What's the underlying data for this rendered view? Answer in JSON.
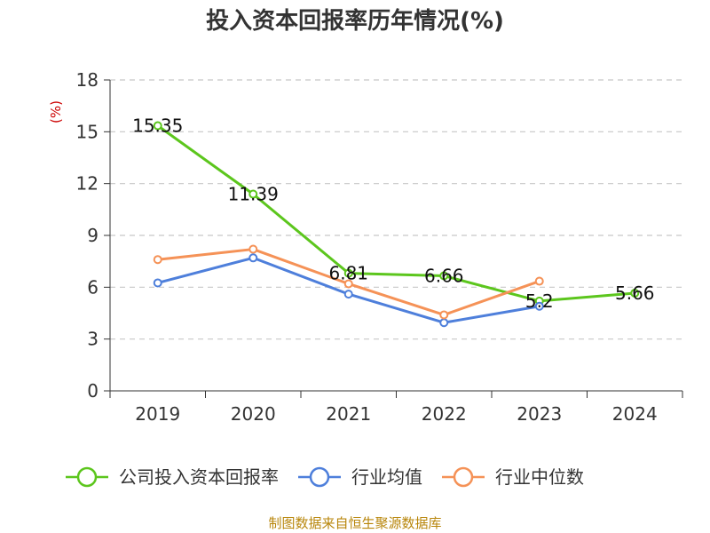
{
  "chart_data": {
    "type": "line",
    "title": "投入资本回报率历年情况(%)",
    "ylabel": "(%)",
    "categories": [
      "2019",
      "2020",
      "2021",
      "2022",
      "2023",
      "2024"
    ],
    "ylim": [
      0,
      18
    ],
    "yticks": [
      0,
      3,
      6,
      9,
      12,
      15,
      18
    ],
    "grid": true,
    "legend_position": "bottom",
    "series": [
      {
        "name": "公司投入资本回报率",
        "values": [
          15.35,
          11.39,
          6.81,
          6.66,
          5.2,
          5.66
        ],
        "labels": [
          "15.35",
          "11.39",
          "6.81",
          "6.66",
          "5.2",
          "5.66"
        ],
        "color": "#5cc61d"
      },
      {
        "name": "行业均值",
        "values": [
          6.25,
          7.7,
          5.6,
          3.95,
          4.9,
          null
        ],
        "labels": [],
        "color": "#4e7fdb"
      },
      {
        "name": "行业中位数",
        "values": [
          7.6,
          8.2,
          6.2,
          4.4,
          6.35,
          null
        ],
        "labels": [],
        "color": "#f59257"
      }
    ],
    "source": "制图数据来自恒生聚源数据库"
  }
}
